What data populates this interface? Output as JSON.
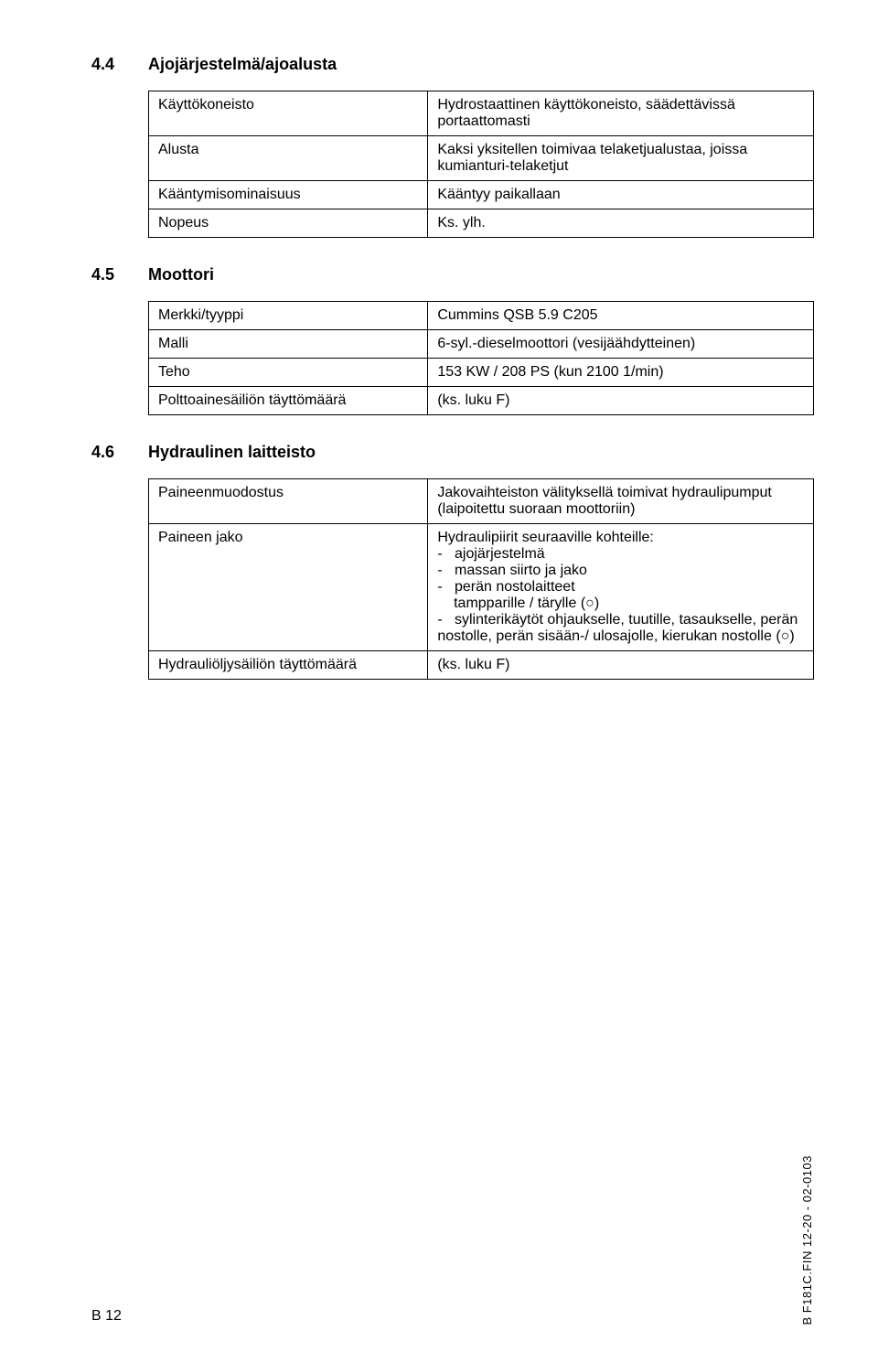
{
  "sections": {
    "s44": {
      "num": "4.4",
      "title": "Ajojärjestelmä/ajoalusta"
    },
    "s45": {
      "num": "4.5",
      "title": "Moottori"
    },
    "s46": {
      "num": "4.6",
      "title": "Hydraulinen laitteisto"
    }
  },
  "table44": {
    "r1": {
      "label": "Käyttökoneisto",
      "value": "Hydrostaattinen käyttökoneisto, säädettävissä portaattomasti"
    },
    "r2": {
      "label": "Alusta",
      "value": "Kaksi yksitellen toimivaa telaketjualustaa, joissa kumianturi-telaketjut"
    },
    "r3": {
      "label": "Kääntymisominaisuus",
      "value": "Kääntyy paikallaan"
    },
    "r4": {
      "label": "Nopeus",
      "value": "Ks. ylh."
    }
  },
  "table45": {
    "r1": {
      "label": "Merkki/tyyppi",
      "value": "Cummins QSB 5.9 C205"
    },
    "r2": {
      "label": "Malli",
      "value": "6-syl.-dieselmoottori (vesijäähdytteinen)"
    },
    "r3": {
      "label": "Teho",
      "value": "153 KW / 208 PS (kun 2100 1/min)"
    },
    "r4": {
      "label": "Polttoainesäiliön täyttömäärä",
      "value": "(ks. luku F)"
    }
  },
  "table46": {
    "r1": {
      "label": "Paineenmuodostus",
      "value": "Jakovaihteiston välityksellä toimivat hydraulipumput\n(laipoitettu suoraan moottoriin)"
    },
    "r2": {
      "label": "Paineen jako",
      "intro": "Hydraulipiirit seuraaville kohteille:",
      "items": [
        "ajojärjestelmä",
        "massan siirto ja jako",
        "perän nostolaitteet\ntampparille / tärylle (○)",
        "sylinterikäytöt ohjaukselle, tuutille, tasaukselle, perän nostolle, perän sisään-/ ulosajolle, kierukan nostolle (○)"
      ]
    },
    "r3": {
      "label": "Hydrauliöljysäiliön täyttömäärä",
      "value": "(ks. luku F)"
    }
  },
  "footer": {
    "page": "B 12",
    "code": "B F181C.FIN 12-20 - 02-0103"
  }
}
